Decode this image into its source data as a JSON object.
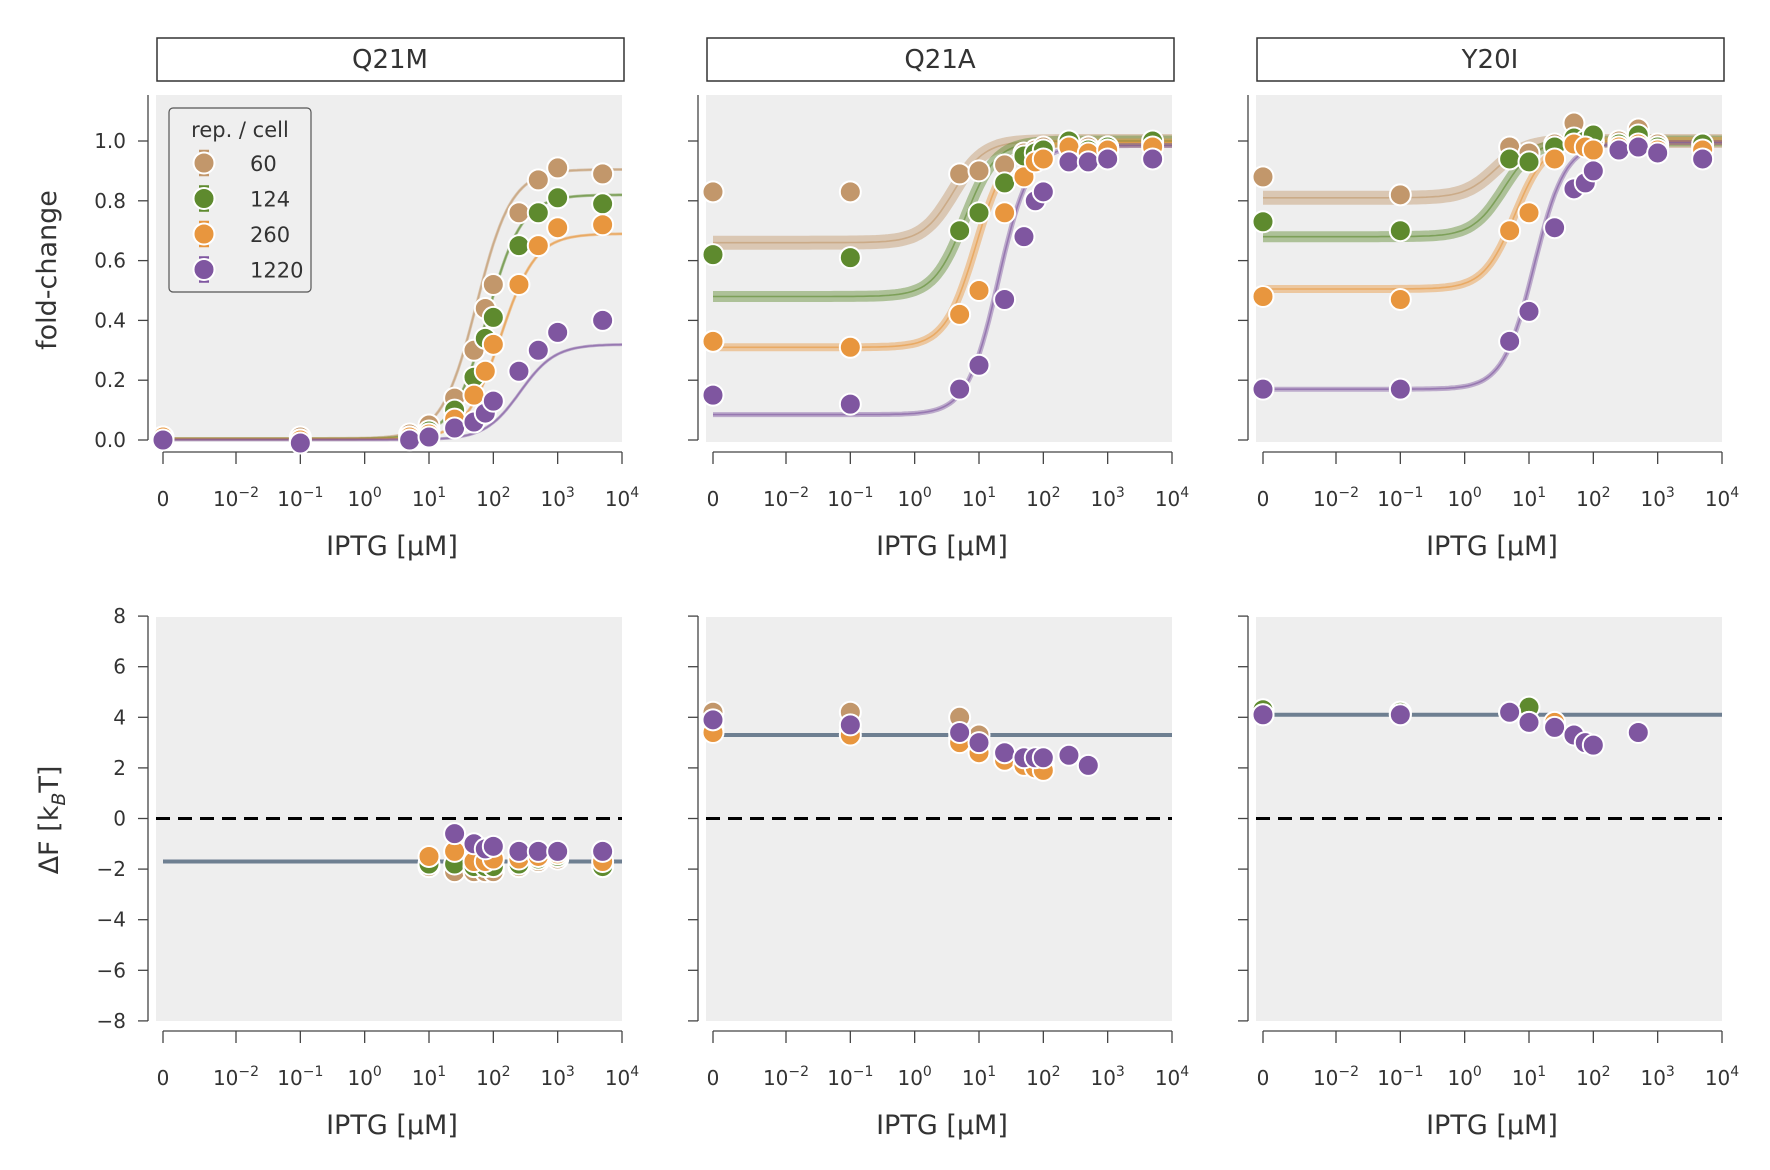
{
  "figure": {
    "colors": {
      "panel_bg": "#eeeeee",
      "axis": "#444444",
      "delta_f_line": "#6e7f91",
      "zero_line": "#000000"
    }
  },
  "chart_data": [
    {
      "type": "scatter",
      "panel": "Q21M",
      "title": "Q21M",
      "row": "fold-change",
      "xlabel": "IPTG [µM]",
      "ylabel": "fold-change",
      "xscale": "log (0 shown at left)",
      "xticks": [
        "0",
        "10^-2",
        "10^-1",
        "10^0",
        "10^1",
        "10^2",
        "10^3",
        "10^4"
      ],
      "yticks": [
        "0.0",
        "0.2",
        "0.4",
        "0.6",
        "0.8",
        "1.0"
      ],
      "ylim": [
        0,
        1.15
      ],
      "x": [
        0,
        0.1,
        5,
        10,
        25,
        50,
        75,
        100,
        250,
        500,
        1000,
        5000
      ],
      "legend": {
        "title": "rep. / cell",
        "position": "top-left"
      },
      "series": [
        {
          "name": "60",
          "color": "#c2976b",
          "values": [
            0.01,
            0.01,
            0.02,
            0.05,
            0.14,
            0.3,
            0.44,
            0.52,
            0.76,
            0.87,
            0.91,
            0.89
          ],
          "fit": {
            "min": 0.005,
            "max": 0.905,
            "ec50": 55,
            "n": 1.6
          }
        },
        {
          "name": "124",
          "color": "#5e8a2e",
          "values": [
            0.01,
            0.0,
            0.01,
            0.03,
            0.1,
            0.21,
            0.34,
            0.41,
            0.65,
            0.76,
            0.81,
            0.79
          ],
          "fit": {
            "min": 0.004,
            "max": 0.82,
            "ec50": 80,
            "n": 1.6
          }
        },
        {
          "name": "260",
          "color": "#e8963e",
          "values": [
            0.01,
            0.0,
            0.01,
            0.02,
            0.07,
            0.15,
            0.23,
            0.32,
            0.52,
            0.65,
            0.71,
            0.72
          ],
          "fit": {
            "min": 0.003,
            "max": 0.69,
            "ec50": 130,
            "n": 1.6
          }
        },
        {
          "name": "1220",
          "color": "#7f56a0",
          "values": [
            0.0,
            -0.01,
            0.0,
            0.01,
            0.04,
            0.06,
            0.09,
            0.13,
            0.23,
            0.3,
            0.36,
            0.4
          ],
          "fit": {
            "min": 0.001,
            "max": 0.32,
            "ec50": 260,
            "n": 1.6
          }
        }
      ]
    },
    {
      "type": "scatter",
      "panel": "Q21A",
      "title": "Q21A",
      "row": "fold-change",
      "xlabel": "IPTG [µM]",
      "ylabel": "",
      "xticks": [
        "0",
        "10^-2",
        "10^-1",
        "10^0",
        "10^1",
        "10^2",
        "10^3",
        "10^4"
      ],
      "ylim": [
        0,
        1.15
      ],
      "x": [
        0,
        0.1,
        5,
        10,
        25,
        50,
        75,
        100,
        250,
        500,
        1000,
        5000
      ],
      "series": [
        {
          "name": "60",
          "color": "#c2976b",
          "values": [
            0.83,
            0.83,
            0.89,
            0.9,
            0.92,
            0.96,
            0.97,
            0.98,
            0.99,
            0.98,
            0.98,
            0.99
          ],
          "fit": {
            "min": 0.66,
            "max": 1.0,
            "ec50": 4,
            "n": 1.8
          }
        },
        {
          "name": "124",
          "color": "#5e8a2e",
          "values": [
            0.62,
            0.61,
            0.7,
            0.76,
            0.86,
            0.95,
            0.96,
            0.97,
            1.0,
            0.97,
            0.98,
            1.0
          ],
          "fit": {
            "min": 0.48,
            "max": 1.0,
            "ec50": 6,
            "n": 1.8
          }
        },
        {
          "name": "260",
          "color": "#e8963e",
          "values": [
            0.33,
            0.31,
            0.42,
            0.5,
            0.76,
            0.88,
            0.93,
            0.94,
            0.98,
            0.96,
            0.97,
            0.98
          ],
          "fit": {
            "min": 0.31,
            "max": 0.995,
            "ec50": 9,
            "n": 1.8
          }
        },
        {
          "name": "1220",
          "color": "#7f56a0",
          "values": [
            0.15,
            0.12,
            0.17,
            0.25,
            0.47,
            0.68,
            0.8,
            0.83,
            0.93,
            0.93,
            0.94,
            0.94
          ],
          "fit": {
            "min": 0.085,
            "max": 0.985,
            "ec50": 20,
            "n": 1.8
          }
        }
      ]
    },
    {
      "type": "scatter",
      "panel": "Y20I",
      "title": "Y20I",
      "row": "fold-change",
      "xlabel": "IPTG [µM]",
      "ylabel": "",
      "xticks": [
        "0",
        "10^-2",
        "10^-1",
        "10^0",
        "10^1",
        "10^2",
        "10^3",
        "10^4"
      ],
      "ylim": [
        0,
        1.15
      ],
      "x": [
        0,
        0.1,
        5,
        10,
        25,
        50,
        75,
        100,
        250,
        500,
        1000,
        5000
      ],
      "series": [
        {
          "name": "60",
          "color": "#c2976b",
          "values": [
            0.88,
            0.82,
            0.98,
            0.96,
            0.99,
            1.06,
            0.99,
            1.0,
            1.0,
            1.04,
            0.99,
            0.98
          ],
          "fit": {
            "min": 0.81,
            "max": 1.0,
            "ec50": 3,
            "n": 1.8
          }
        },
        {
          "name": "124",
          "color": "#5e8a2e",
          "values": [
            0.73,
            0.7,
            0.94,
            0.93,
            0.98,
            1.01,
            1.0,
            1.02,
            0.99,
            1.02,
            0.98,
            0.99
          ],
          "fit": {
            "min": 0.68,
            "max": 1.0,
            "ec50": 4,
            "n": 1.8
          }
        },
        {
          "name": "260",
          "color": "#e8963e",
          "values": [
            0.48,
            0.47,
            0.7,
            0.76,
            0.94,
            0.99,
            0.98,
            0.97,
            0.98,
            0.99,
            0.97,
            0.97
          ],
          "fit": {
            "min": 0.505,
            "max": 1.0,
            "ec50": 6,
            "n": 1.8
          }
        },
        {
          "name": "1220",
          "color": "#7f56a0",
          "values": [
            0.17,
            0.17,
            0.33,
            0.43,
            0.71,
            0.84,
            0.86,
            0.9,
            0.97,
            0.98,
            0.96,
            0.94
          ],
          "fit": {
            "min": 0.17,
            "max": 0.995,
            "ec50": 12,
            "n": 1.8
          }
        }
      ]
    },
    {
      "type": "scatter",
      "panel": "Q21M",
      "row": "delta-F",
      "xlabel": "IPTG [µM]",
      "ylabel": "ΔF [kBT]",
      "yticks": [
        "8",
        "6",
        "4",
        "2",
        "0",
        "−2",
        "−4",
        "−6",
        "−8"
      ],
      "ylim": [
        -8,
        8
      ],
      "reference_line": 0,
      "delta_f": -1.7,
      "x": [
        10,
        25,
        50,
        75,
        100,
        250,
        500,
        1000,
        5000
      ],
      "series": [
        {
          "name": "60",
          "color": "#c2976b",
          "values": [
            -1.9,
            -2.1,
            -2.1,
            -2.1,
            -2.1,
            -1.9,
            -1.7,
            -1.6,
            -1.9
          ]
        },
        {
          "name": "124",
          "color": "#5e8a2e",
          "values": [
            -1.8,
            -1.8,
            -1.9,
            -1.9,
            -1.9,
            -1.8,
            -1.6,
            -1.5,
            -1.9
          ]
        },
        {
          "name": "260",
          "color": "#e8963e",
          "values": [
            -1.5,
            -1.3,
            -1.7,
            -1.7,
            -1.6,
            -1.6,
            -1.5,
            -1.4,
            -1.7
          ]
        },
        {
          "name": "1220",
          "color": "#7f56a0",
          "values": [
            null,
            -0.6,
            -1.0,
            -1.2,
            -1.1,
            -1.3,
            -1.3,
            -1.3,
            -1.3
          ]
        }
      ]
    },
    {
      "type": "scatter",
      "panel": "Q21A",
      "row": "delta-F",
      "xlabel": "IPTG [µM]",
      "ylim": [
        -8,
        8
      ],
      "reference_line": 0,
      "delta_f": 3.3,
      "x": [
        0,
        0.1,
        5,
        10,
        25,
        50,
        75,
        100,
        250,
        500
      ],
      "series": [
        {
          "name": "60",
          "color": "#c2976b",
          "values": [
            4.2,
            4.2,
            4.0,
            3.3,
            null,
            null,
            null,
            null,
            null,
            null
          ]
        },
        {
          "name": "124",
          "color": "#5e8a2e",
          "values": [
            3.6,
            3.5,
            3.2,
            2.9,
            2.4,
            2.2,
            2.3,
            2.1,
            null,
            null
          ]
        },
        {
          "name": "260",
          "color": "#e8963e",
          "values": [
            3.4,
            3.3,
            3.0,
            2.6,
            2.3,
            2.1,
            2.0,
            1.9,
            null,
            null
          ]
        },
        {
          "name": "1220",
          "color": "#7f56a0",
          "values": [
            3.9,
            3.7,
            3.4,
            3.0,
            2.6,
            2.4,
            2.4,
            2.4,
            2.5,
            2.1
          ]
        }
      ]
    },
    {
      "type": "scatter",
      "panel": "Y20I",
      "row": "delta-F",
      "xlabel": "IPTG [µM]",
      "ylim": [
        -8,
        8
      ],
      "reference_line": 0,
      "delta_f": 4.1,
      "x": [
        0,
        0.1,
        5,
        10,
        25,
        50,
        75,
        100,
        500
      ],
      "series": [
        {
          "name": "60",
          "color": "#c2976b",
          "values": [
            4.3,
            4.2,
            null,
            null,
            null,
            null,
            null,
            null,
            null
          ]
        },
        {
          "name": "124",
          "color": "#5e8a2e",
          "values": [
            4.3,
            4.2,
            4.2,
            4.4,
            null,
            null,
            null,
            null,
            null
          ]
        },
        {
          "name": "260",
          "color": "#e8963e",
          "values": [
            4.1,
            4.1,
            4.2,
            3.8,
            3.8,
            null,
            null,
            null,
            null
          ]
        },
        {
          "name": "1220",
          "color": "#7f56a0",
          "values": [
            4.1,
            4.1,
            4.2,
            3.8,
            3.6,
            3.3,
            3.0,
            2.9,
            3.4
          ]
        }
      ]
    }
  ],
  "legend": {
    "title": "rep. / cell",
    "entries": [
      {
        "label": "60",
        "color": "#c2976b"
      },
      {
        "label": "124",
        "color": "#5e8a2e"
      },
      {
        "label": "260",
        "color": "#e8963e"
      },
      {
        "label": "1220",
        "color": "#7f56a0"
      }
    ]
  },
  "labels": {
    "top_ylabel": "fold-change",
    "bottom_ylabel_main": "ΔF [k",
    "bottom_ylabel_sub": "B",
    "bottom_ylabel_end": "T]",
    "xlabel": "IPTG [µM]",
    "panel_titles": [
      "Q21M",
      "Q21A",
      "Y20I"
    ],
    "top_yticks": [
      "0.0",
      "0.2",
      "0.4",
      "0.6",
      "0.8",
      "1.0"
    ],
    "bottom_yticks": [
      "8",
      "6",
      "4",
      "2",
      "0",
      "−2",
      "−4",
      "−6",
      "−8"
    ],
    "xticks": [
      {
        "base": "0",
        "exp": ""
      },
      {
        "base": "10",
        "exp": "−2"
      },
      {
        "base": "10",
        "exp": "−1"
      },
      {
        "base": "10",
        "exp": "0"
      },
      {
        "base": "10",
        "exp": "1"
      },
      {
        "base": "10",
        "exp": "2"
      },
      {
        "base": "10",
        "exp": "3"
      },
      {
        "base": "10",
        "exp": "4"
      }
    ]
  }
}
